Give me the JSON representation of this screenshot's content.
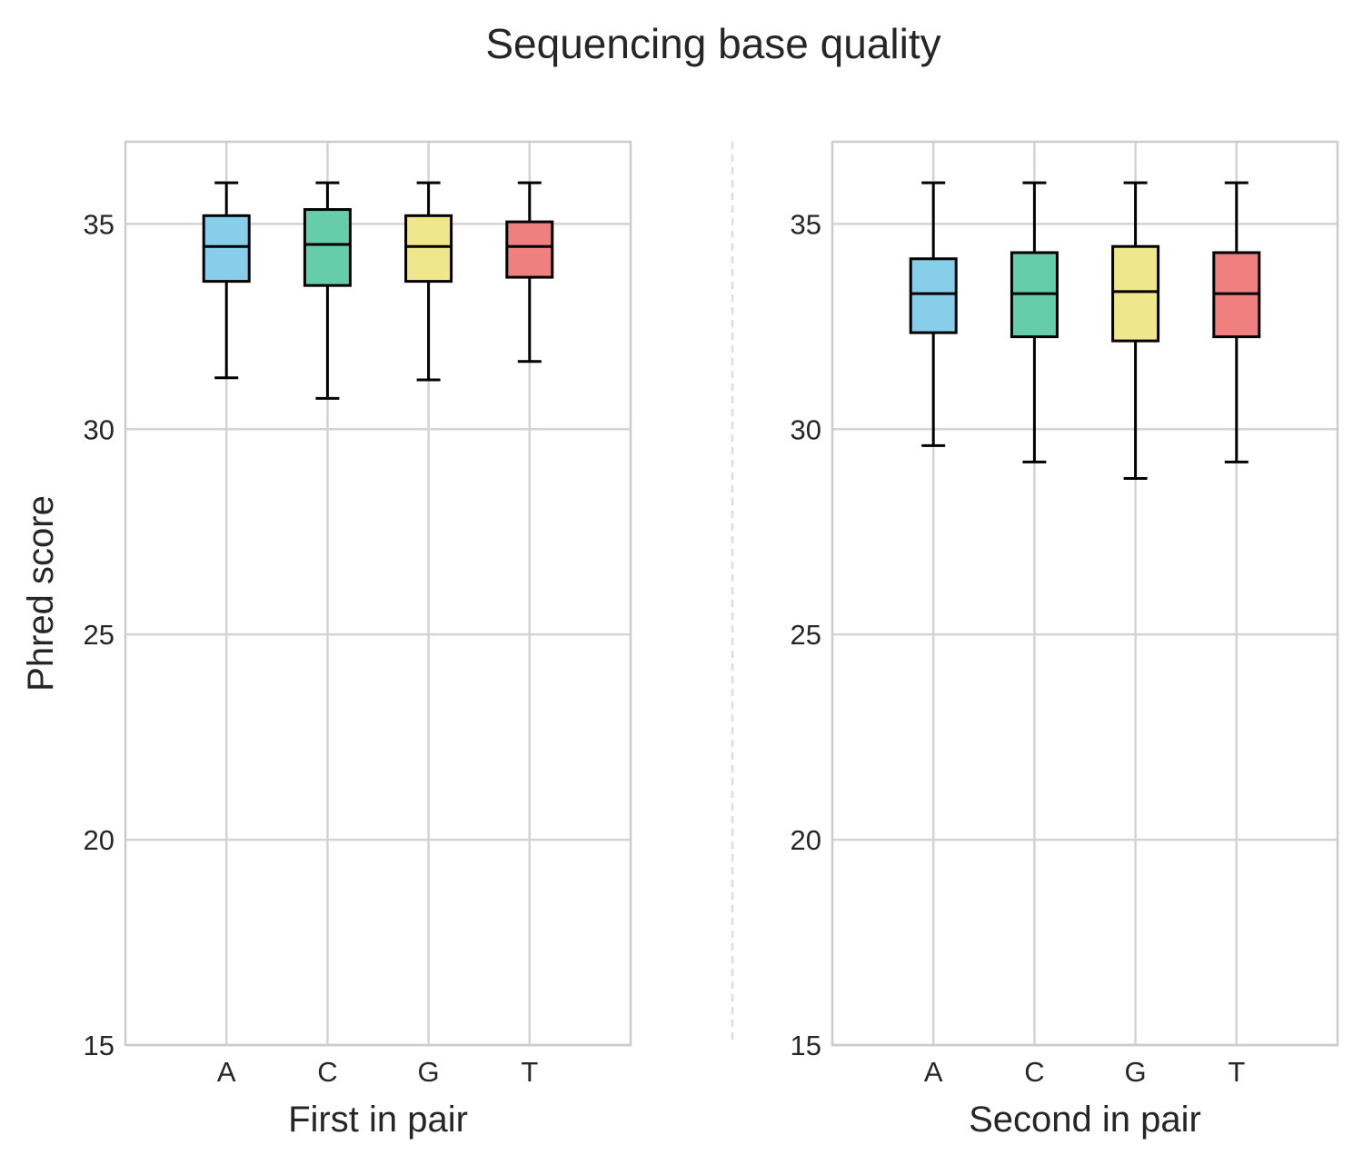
{
  "title": "Sequencing base quality",
  "ylabel": "Phred score",
  "colors": {
    "A": "#87ceeb",
    "C": "#66cdaa",
    "G": "#f0e68c",
    "T": "#f08080",
    "box_edge": "#000000",
    "grid": "#d3d3d3",
    "spine": "#cccccc",
    "separator": "#dddddd"
  },
  "chart_data": [
    {
      "type": "box",
      "xlabel": "First in pair",
      "ylabel": "Phred score",
      "categories": [
        "A",
        "C",
        "G",
        "T"
      ],
      "ylim": [
        15,
        37
      ],
      "yticks": [
        15,
        20,
        25,
        30,
        35
      ],
      "grid": true,
      "boxes": [
        {
          "category": "A",
          "whisker_low": 31.25,
          "q1": 33.6,
          "median": 34.45,
          "q3": 35.2,
          "whisker_high": 36.0
        },
        {
          "category": "C",
          "whisker_low": 30.75,
          "q1": 33.5,
          "median": 34.5,
          "q3": 35.35,
          "whisker_high": 36.0
        },
        {
          "category": "G",
          "whisker_low": 31.2,
          "q1": 33.6,
          "median": 34.45,
          "q3": 35.2,
          "whisker_high": 36.0
        },
        {
          "category": "T",
          "whisker_low": 31.65,
          "q1": 33.7,
          "median": 34.45,
          "q3": 35.05,
          "whisker_high": 36.0
        }
      ]
    },
    {
      "type": "box",
      "xlabel": "Second in pair",
      "ylabel": "",
      "categories": [
        "A",
        "C",
        "G",
        "T"
      ],
      "ylim": [
        15,
        37
      ],
      "yticks": [
        15,
        20,
        25,
        30,
        35
      ],
      "grid": true,
      "boxes": [
        {
          "category": "A",
          "whisker_low": 29.6,
          "q1": 32.35,
          "median": 33.3,
          "q3": 34.15,
          "whisker_high": 36.0
        },
        {
          "category": "C",
          "whisker_low": 29.2,
          "q1": 32.25,
          "median": 33.3,
          "q3": 34.3,
          "whisker_high": 36.0
        },
        {
          "category": "G",
          "whisker_low": 28.8,
          "q1": 32.15,
          "median": 33.35,
          "q3": 34.45,
          "whisker_high": 36.0
        },
        {
          "category": "T",
          "whisker_low": 29.2,
          "q1": 32.25,
          "median": 33.3,
          "q3": 34.3,
          "whisker_high": 36.0
        }
      ]
    }
  ]
}
